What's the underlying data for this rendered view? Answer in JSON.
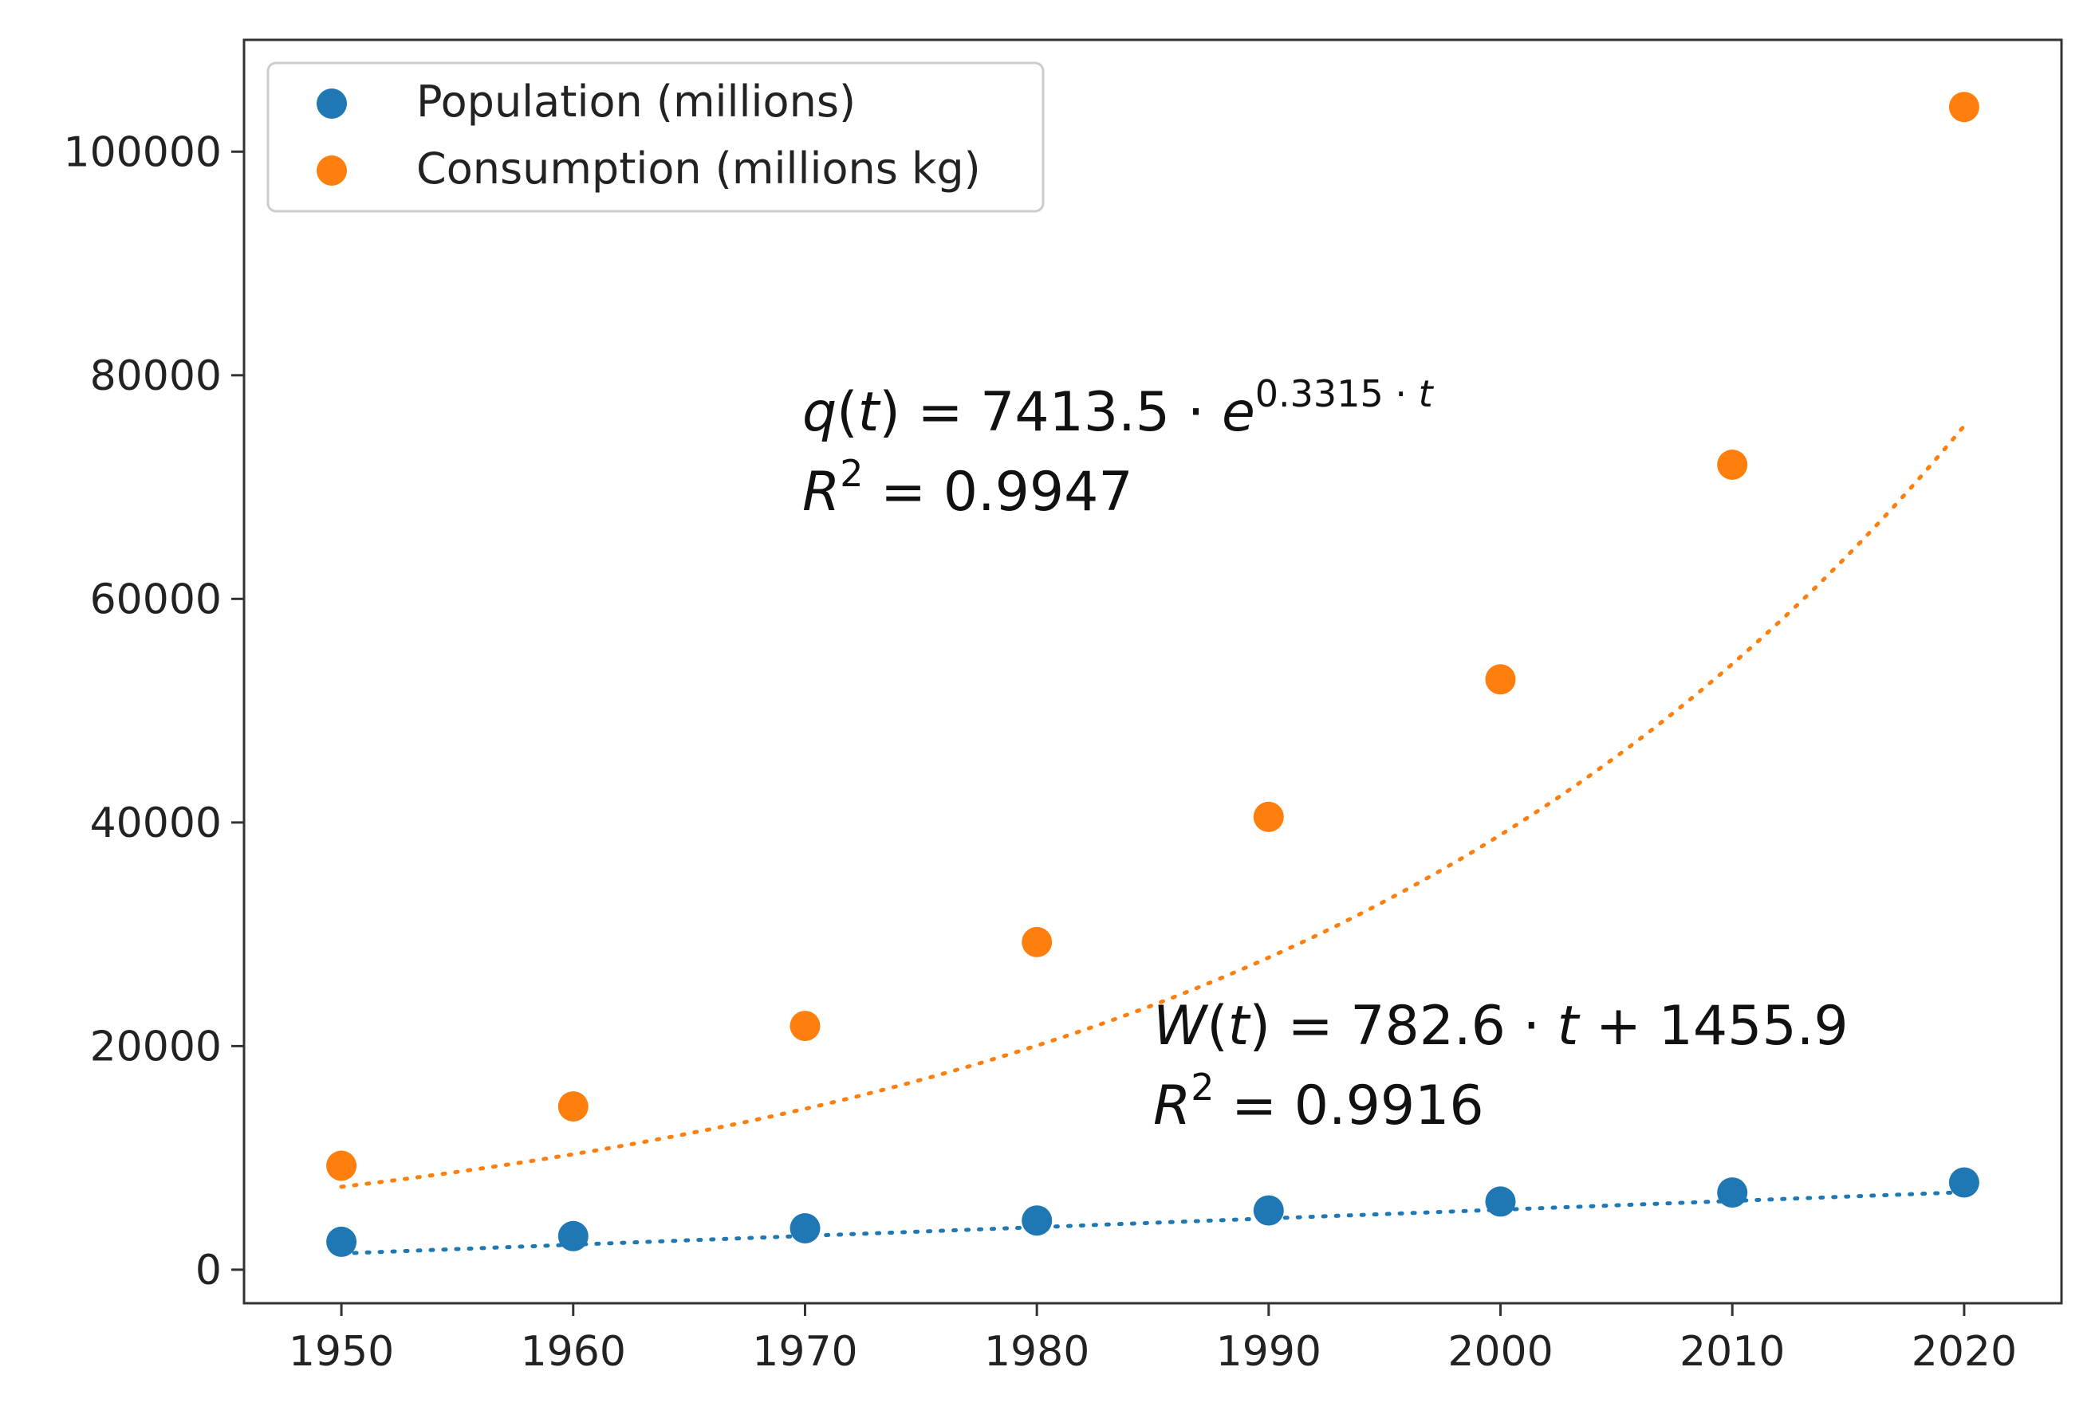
{
  "chart_data": {
    "type": "scatter",
    "title": "",
    "xlabel": "",
    "ylabel": "",
    "x": [
      1950,
      1960,
      1970,
      1980,
      1990,
      2000,
      2010,
      2020
    ],
    "xlim": [
      1945.8,
      2024.2
    ],
    "ylim": [
      -3000,
      110000
    ],
    "xticks": [
      1950,
      1960,
      1970,
      1980,
      1990,
      2000,
      2010,
      2020
    ],
    "yticks": [
      0,
      20000,
      40000,
      60000,
      80000,
      100000
    ],
    "grid": false,
    "legend_position": "top-left",
    "series": [
      {
        "name": "Population (millions)",
        "color": "#1f77b4",
        "values": [
          2500,
          3000,
          3700,
          4400,
          5300,
          6100,
          6900,
          7800
        ],
        "fit": {
          "kind": "linear",
          "slope": 782.6,
          "intercept": 1455.9
        }
      },
      {
        "name": "Consumption (millions kg)",
        "color": "#ff7f0e",
        "values": [
          9300,
          14600,
          21800,
          29300,
          40500,
          52800,
          72000,
          104000
        ],
        "fit": {
          "kind": "exponential",
          "a": 7413.5,
          "b": 0.3315
        }
      }
    ],
    "annotations": [
      {
        "id": "consumption-fit",
        "fn": "q",
        "var": "t",
        "rhs_number": "7413.5",
        "dot": "·",
        "base": "e",
        "exponent_number": "0.3315",
        "r2_label": "R",
        "r2_power": "2",
        "r2_value": "0.9947"
      },
      {
        "id": "population-fit",
        "fn": "W",
        "var": "t",
        "slope": "782.6",
        "dot": "·",
        "plus": "+",
        "intercept": "1455.9",
        "r2_label": "R",
        "r2_power": "2",
        "r2_value": "0.9916"
      }
    ]
  }
}
